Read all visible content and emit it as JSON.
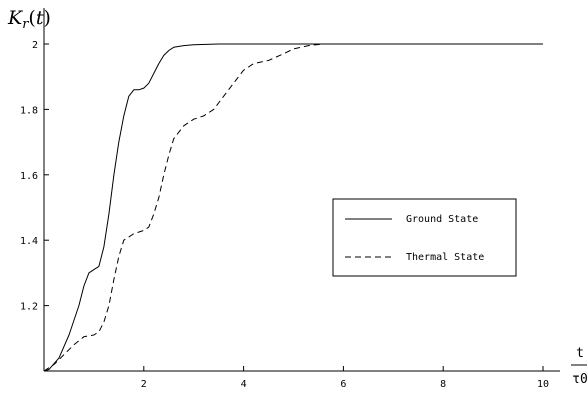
{
  "chart_data": {
    "type": "line",
    "title": "",
    "ylabel": "K_r(t)",
    "xlabel_num": "t",
    "xlabel_den": "τ0",
    "xlim": [
      0,
      10
    ],
    "ylim": [
      1.0,
      2.0
    ],
    "x_ticks": [
      2,
      4,
      6,
      8,
      10
    ],
    "x_tick_labels": [
      "2",
      "4",
      "6",
      "8",
      "10"
    ],
    "y_ticks": [
      1.2,
      1.4,
      1.6,
      1.8,
      2.0
    ],
    "y_tick_labels": [
      "1.2",
      "1.4",
      "1.6",
      "1.8",
      "2"
    ],
    "grid": false,
    "legend_position": "right-middle",
    "series": [
      {
        "name": "Ground State",
        "style": "solid",
        "color": "#000000",
        "points": [
          [
            0,
            1.0
          ],
          [
            0.1,
            1.005
          ],
          [
            0.3,
            1.04
          ],
          [
            0.5,
            1.11
          ],
          [
            0.7,
            1.2
          ],
          [
            0.8,
            1.26
          ],
          [
            0.9,
            1.3
          ],
          [
            1.0,
            1.31
          ],
          [
            1.1,
            1.32
          ],
          [
            1.2,
            1.38
          ],
          [
            1.3,
            1.48
          ],
          [
            1.4,
            1.6
          ],
          [
            1.5,
            1.7
          ],
          [
            1.6,
            1.78
          ],
          [
            1.7,
            1.84
          ],
          [
            1.8,
            1.86
          ],
          [
            1.9,
            1.86
          ],
          [
            2.0,
            1.865
          ],
          [
            2.1,
            1.88
          ],
          [
            2.2,
            1.91
          ],
          [
            2.3,
            1.94
          ],
          [
            2.4,
            1.965
          ],
          [
            2.5,
            1.98
          ],
          [
            2.6,
            1.99
          ],
          [
            2.8,
            1.995
          ],
          [
            3.0,
            1.998
          ],
          [
            3.5,
            2.0
          ],
          [
            4.0,
            2.0
          ],
          [
            5.0,
            2.0
          ],
          [
            6.0,
            2.0
          ],
          [
            7.0,
            2.0
          ],
          [
            8.0,
            2.0
          ],
          [
            9.0,
            2.0
          ],
          [
            10.0,
            2.0
          ]
        ]
      },
      {
        "name": "Thermal State",
        "style": "dashed",
        "color": "#000000",
        "points": [
          [
            0,
            1.0
          ],
          [
            0.2,
            1.02
          ],
          [
            0.4,
            1.05
          ],
          [
            0.6,
            1.08
          ],
          [
            0.8,
            1.105
          ],
          [
            1.0,
            1.11
          ],
          [
            1.1,
            1.12
          ],
          [
            1.2,
            1.15
          ],
          [
            1.3,
            1.2
          ],
          [
            1.4,
            1.28
          ],
          [
            1.5,
            1.35
          ],
          [
            1.6,
            1.4
          ],
          [
            1.8,
            1.42
          ],
          [
            2.0,
            1.43
          ],
          [
            2.1,
            1.44
          ],
          [
            2.2,
            1.48
          ],
          [
            2.3,
            1.53
          ],
          [
            2.4,
            1.6
          ],
          [
            2.5,
            1.66
          ],
          [
            2.6,
            1.71
          ],
          [
            2.8,
            1.75
          ],
          [
            3.0,
            1.77
          ],
          [
            3.2,
            1.78
          ],
          [
            3.4,
            1.8
          ],
          [
            3.6,
            1.84
          ],
          [
            3.8,
            1.88
          ],
          [
            4.0,
            1.92
          ],
          [
            4.2,
            1.94
          ],
          [
            4.5,
            1.95
          ],
          [
            4.8,
            1.97
          ],
          [
            5.0,
            1.985
          ],
          [
            5.3,
            1.995
          ],
          [
            5.6,
            2.0
          ],
          [
            6.0,
            2.0
          ],
          [
            7.0,
            2.0
          ],
          [
            8.0,
            2.0
          ],
          [
            9.0,
            2.0
          ],
          [
            10.0,
            2.0
          ]
        ]
      }
    ]
  }
}
